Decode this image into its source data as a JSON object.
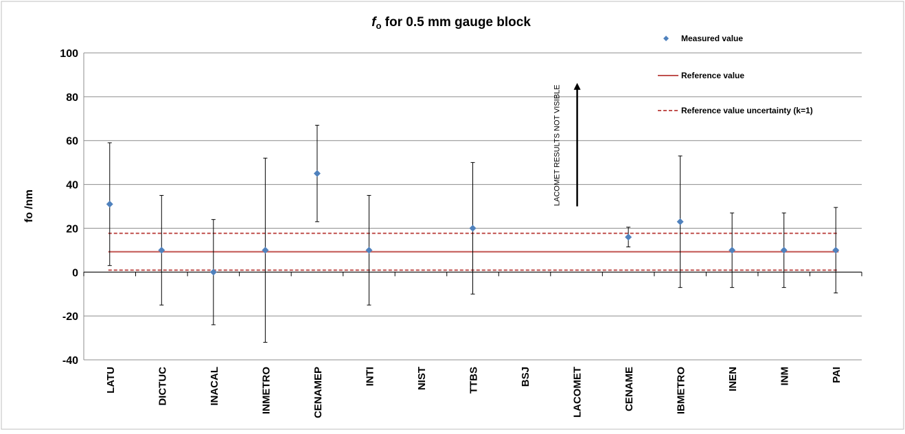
{
  "chart_data": {
    "type": "scatter",
    "title_main": "f",
    "title_sub": "o",
    "title_rest": " for 0.5 mm gauge block",
    "ylabel": "fo /nm",
    "xlabel": "",
    "ylim": [
      -40,
      100
    ],
    "yticks": [
      -40,
      -20,
      0,
      20,
      40,
      60,
      80,
      100
    ],
    "grid": true,
    "legend_position": "top-right",
    "categories": [
      "LATU",
      "DICTUC",
      "INACAL",
      "INMETRO",
      "CENAMEP",
      "INTI",
      "NIST",
      "TTBS",
      "BSJ",
      "LACOMET",
      "CENAME",
      "IBMETRO",
      "INEN",
      "INM",
      "PAI"
    ],
    "series": [
      {
        "name": "Measured value",
        "color": "#4f81bd",
        "points": [
          {
            "category": "LATU",
            "value": 31,
            "err_low": 3,
            "err_high": 59
          },
          {
            "category": "DICTUC",
            "value": 10,
            "err_low": -15,
            "err_high": 35
          },
          {
            "category": "INACAL",
            "value": 0,
            "err_low": -24,
            "err_high": 24
          },
          {
            "category": "INMETRO",
            "value": 10,
            "err_low": -32,
            "err_high": 52
          },
          {
            "category": "CENAMEP",
            "value": 45,
            "err_low": 23,
            "err_high": 67
          },
          {
            "category": "INTI",
            "value": 10,
            "err_low": -15,
            "err_high": 35
          },
          {
            "category": "TTBS",
            "value": 20,
            "err_low": -10,
            "err_high": 50
          },
          {
            "category": "CENAME",
            "value": 16,
            "err_low": 11.5,
            "err_high": 20.5
          },
          {
            "category": "IBMETRO",
            "value": 23,
            "err_low": -7,
            "err_high": 53
          },
          {
            "category": "INEN",
            "value": 10,
            "err_low": -7,
            "err_high": 27
          },
          {
            "category": "INM",
            "value": 10,
            "err_low": -7,
            "err_high": 27
          },
          {
            "category": "PAI",
            "value": 10,
            "err_low": -9.5,
            "err_high": 29.5
          }
        ]
      }
    ],
    "reference_value": 9.3,
    "reference_uncertainty": [
      0.9,
      17.7
    ],
    "reference_color": "#c0504d",
    "legend": {
      "measured": "Measured value",
      "reference": "Reference value",
      "uncertainty": "Reference value uncertainty (k=1)"
    },
    "annotation": {
      "text": "LACOMET RESULTS NOT VISIBLE",
      "category": "LACOMET",
      "arrow_from": 30,
      "arrow_to": 86
    }
  }
}
